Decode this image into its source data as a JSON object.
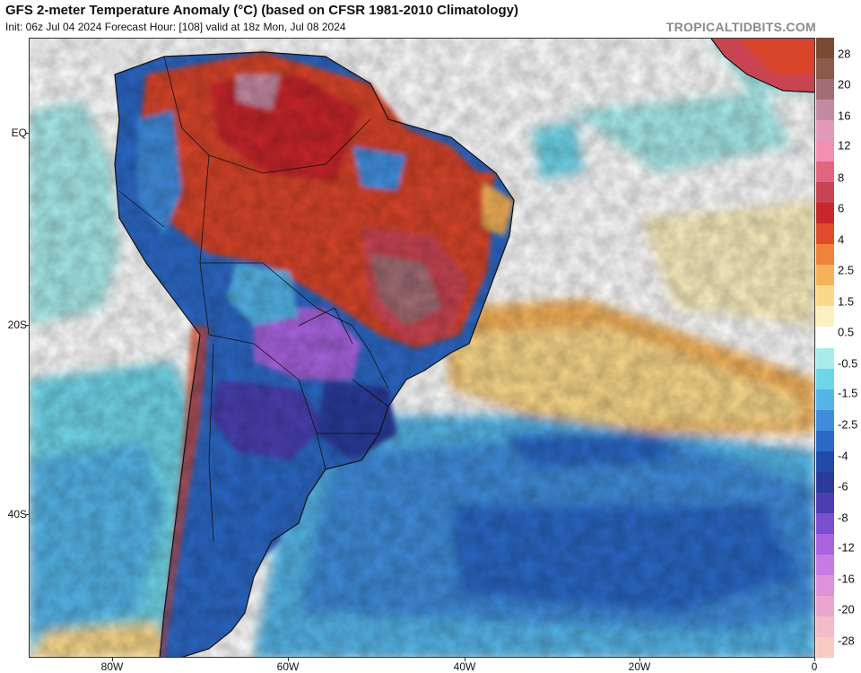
{
  "header": {
    "title": "GFS 2-meter Temperature Anomaly (°C) (based on CFSR 1981-2010 Climatology)",
    "subtitle": "Init: 06z Jul 04 2024   Forecast Hour: [108]   valid at 18z Mon, Jul 08 2024",
    "brand": "TROPICALTIDBITS.COM"
  },
  "axes": {
    "lat_labels": [
      "EQ",
      "20S",
      "40S"
    ],
    "lon_labels": [
      "80W",
      "60W",
      "40W",
      "20W",
      "0"
    ]
  },
  "colorbar": {
    "labels": [
      "28",
      "20",
      "16",
      "12",
      "8",
      "6",
      "4",
      "2.5",
      "1.5",
      "0.5",
      "-0.5",
      "-1.5",
      "-2.5",
      "-4",
      "-6",
      "-8",
      "-12",
      "-16",
      "-20",
      "-28"
    ],
    "colors": [
      "#7a4a33",
      "#8c5a4a",
      "#a26e74",
      "#c48aa0",
      "#e39ab8",
      "#f28fb1",
      "#e0667f",
      "#c94452",
      "#c8272c",
      "#e04b2b",
      "#f0823a",
      "#f5b25a",
      "#fbd98a",
      "#fdf0c0",
      "#ffffff",
      "#a9ecec",
      "#6fd6e9",
      "#55b5e8",
      "#3f8ddb",
      "#2c68c6",
      "#1f4aa8",
      "#2a3a9a",
      "#4a3fb0",
      "#7a4fd0",
      "#a864df",
      "#c87ae5",
      "#e090d8",
      "#eaa6d0",
      "#f3bcc8",
      "#f8ccc0"
    ]
  },
  "legend_colors": {
    "ocean_cool": "#3f8ddb",
    "land_warm": "#d9452b",
    "cold_core": "#8a4fd6",
    "coast_line": "#111111"
  }
}
